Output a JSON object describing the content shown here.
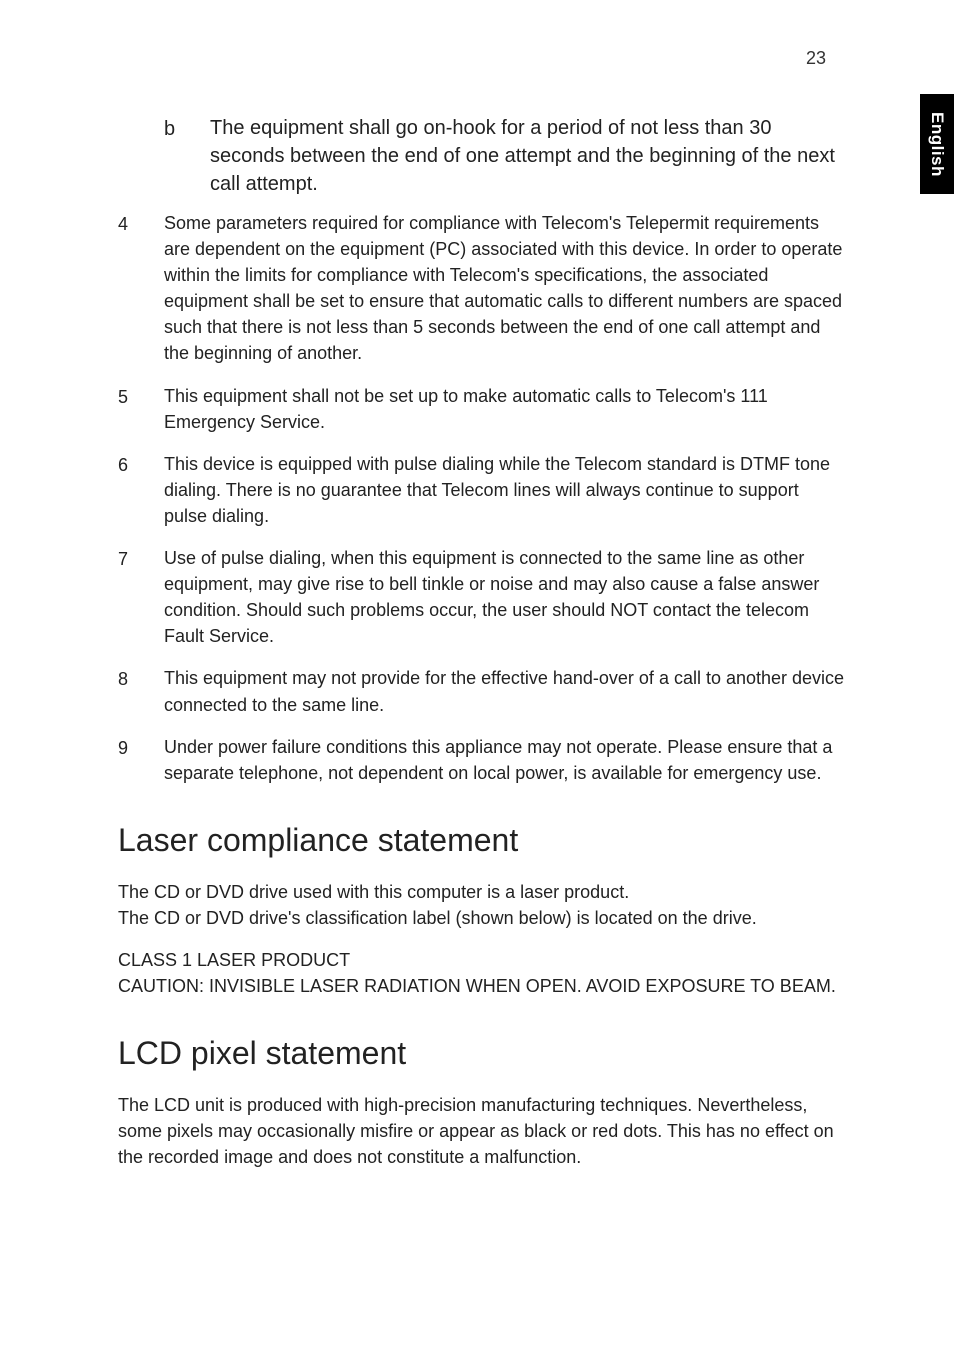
{
  "page": {
    "number": "23",
    "side_tab": "English"
  },
  "sub_b": {
    "marker": "b",
    "text": "The equipment shall go on-hook for a period of not less than 30 seconds between the end of one attempt and the beginning of the next call attempt."
  },
  "items": [
    {
      "marker": "4",
      "text": "Some parameters required for compliance with Telecom's Telepermit requirements are dependent on the equipment (PC) associated with this device. In order to operate within the limits for compliance with Telecom's specifications, the associated equipment shall be set to ensure that automatic calls to different numbers are spaced such that there is not less than 5 seconds between the end of one call attempt and the beginning of another."
    },
    {
      "marker": "5",
      "text": "This equipment shall not be set up to make automatic calls to Telecom's 111 Emergency Service."
    },
    {
      "marker": "6",
      "text": "This device is equipped with pulse dialing while the Telecom standard is DTMF tone dialing. There is no guarantee that Telecom lines will always continue to support pulse dialing."
    },
    {
      "marker": "7",
      "text": "Use of pulse dialing, when this equipment is connected to the same line as other equipment, may give rise to bell tinkle or noise and may also cause a false answer condition. Should such problems occur, the user should NOT contact the telecom Fault Service."
    },
    {
      "marker": "8",
      "text": "This equipment may not provide for the effective hand-over of a call to another device connected to the same line."
    },
    {
      "marker": "9",
      "text": "Under power failure conditions this appliance may not operate. Please ensure that a separate telephone, not dependent on local power, is available for emergency use."
    }
  ],
  "laser": {
    "heading": "Laser compliance statement",
    "p1": "The CD or DVD drive used with this computer is a laser product.",
    "p2": "The CD or DVD drive's classification label (shown below) is located on the drive.",
    "p3": "CLASS 1 LASER PRODUCT",
    "p4": "CAUTION: INVISIBLE LASER RADIATION WHEN OPEN. AVOID EXPOSURE TO BEAM."
  },
  "lcd": {
    "heading": "LCD pixel statement",
    "p1": "The LCD unit is produced with high-precision manufacturing techniques. Nevertheless, some pixels may occasionally misfire or appear as black or red dots. This has no effect on the recorded image and does not constitute a malfunction."
  }
}
